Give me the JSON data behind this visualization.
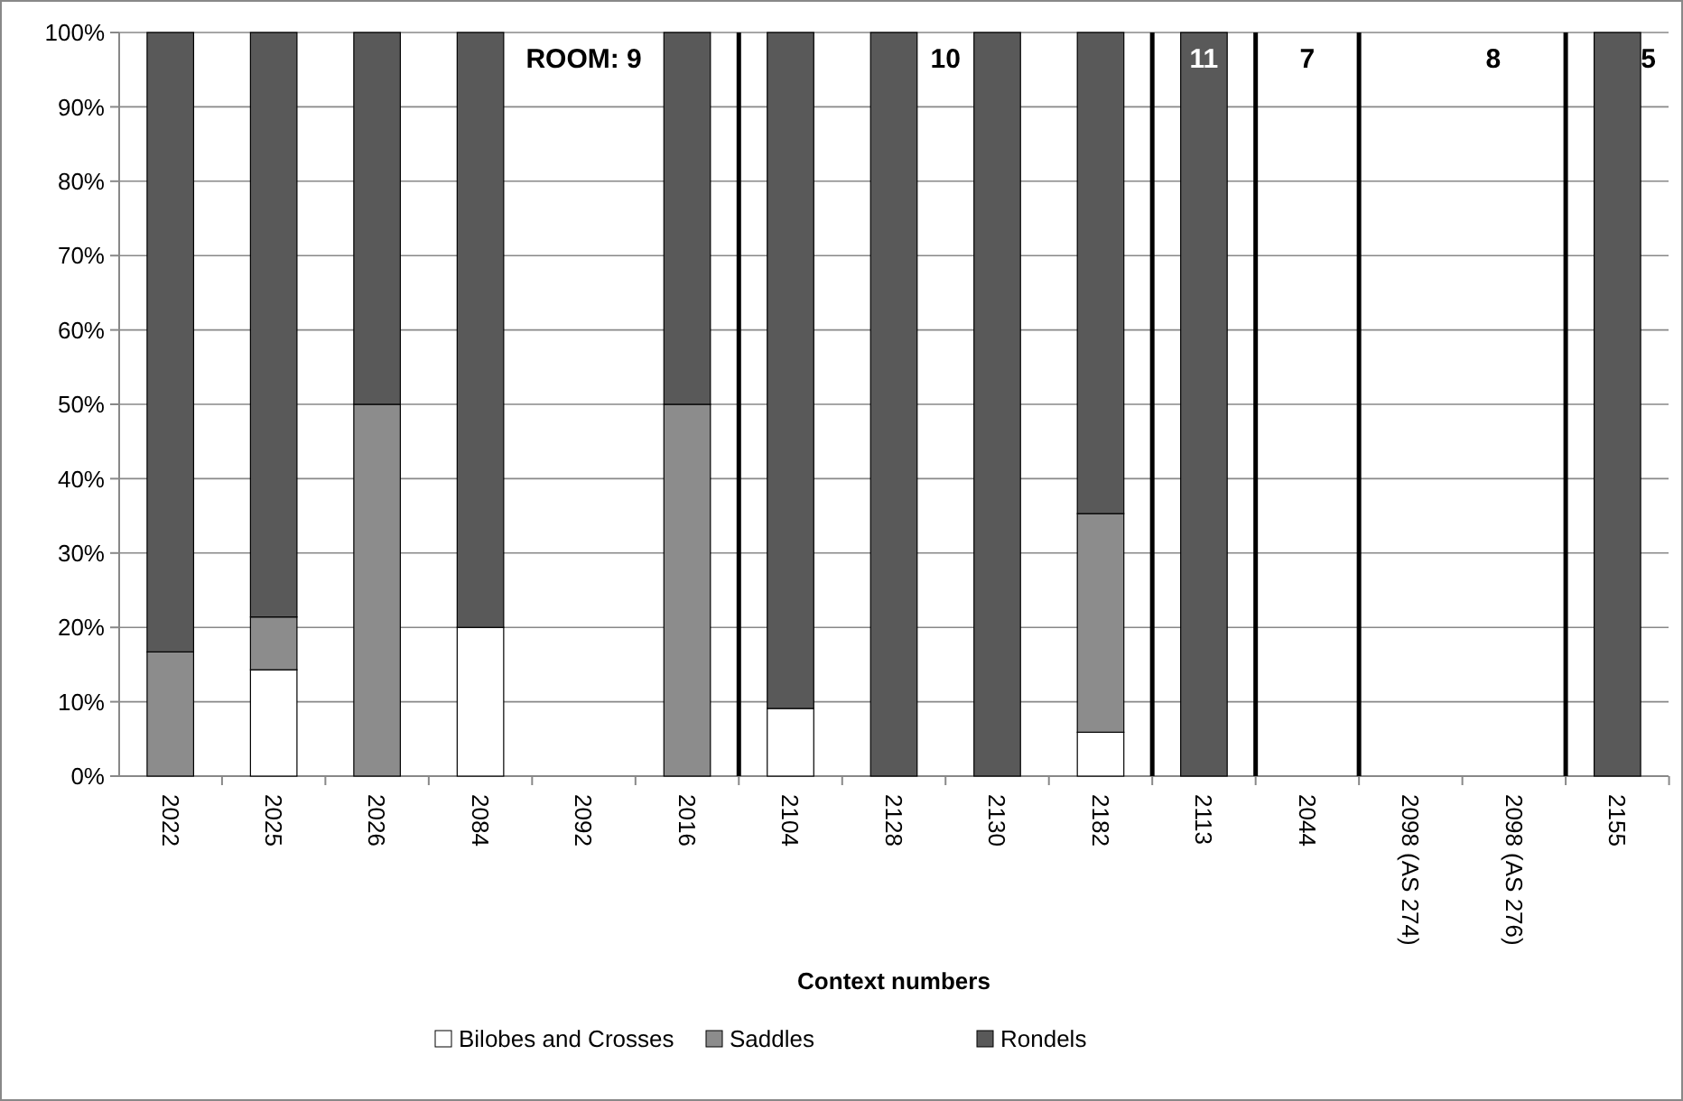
{
  "chart_data": {
    "type": "bar",
    "stacked": true,
    "xlabel": "Context numbers",
    "categories": [
      "2022",
      "2025",
      "2026",
      "2084",
      "2092",
      "2016",
      "2104",
      "2128",
      "2130",
      "2182",
      "2113",
      "2044",
      "2098 (AS 274)",
      "2098 (AS 276)",
      "2155"
    ],
    "series": [
      {
        "name": "Bilobes and Crosses",
        "color": "#ffffff",
        "values": [
          0,
          14.3,
          0,
          20,
          0,
          0,
          9.1,
          0,
          0,
          5.9,
          0,
          0,
          0,
          0,
          0
        ]
      },
      {
        "name": "Saddles",
        "color": "#8c8c8c",
        "values": [
          16.7,
          7.1,
          50,
          0,
          0,
          50,
          0,
          0,
          0,
          29.4,
          0,
          0,
          0,
          0,
          0
        ]
      },
      {
        "name": "Rondels",
        "color": "#595959",
        "values": [
          83.3,
          78.6,
          50,
          80,
          0,
          50,
          90.9,
          100,
          100,
          64.7,
          100,
          0,
          0,
          0,
          100
        ]
      }
    ],
    "ylim": [
      0,
      100
    ],
    "yticks": [
      {
        "value": 0,
        "label": "0%"
      },
      {
        "value": 10,
        "label": "10%"
      },
      {
        "value": 20,
        "label": "20%"
      },
      {
        "value": 30,
        "label": "30%"
      },
      {
        "value": 40,
        "label": "40%"
      },
      {
        "value": 50,
        "label": "50%"
      },
      {
        "value": 60,
        "label": "60%"
      },
      {
        "value": 70,
        "label": "70%"
      },
      {
        "value": 80,
        "label": "80%"
      },
      {
        "value": 90,
        "label": "90%"
      },
      {
        "value": 100,
        "label": "100%"
      }
    ],
    "grid": "y",
    "legend": "bottom",
    "annotations": [
      "ROOM:  9",
      "10",
      "11",
      "7",
      "8",
      "5"
    ]
  }
}
